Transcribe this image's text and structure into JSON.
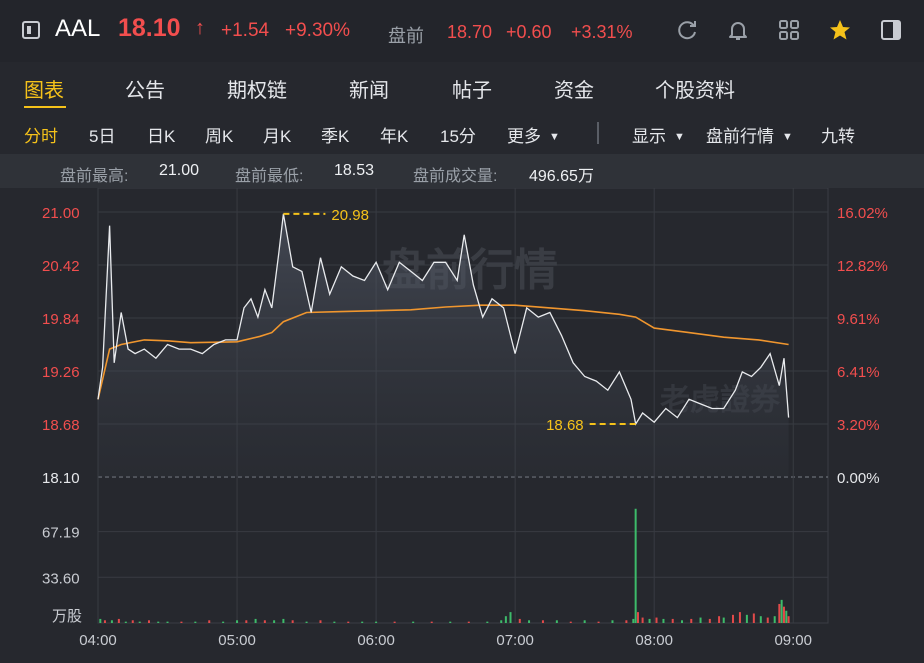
{
  "header": {
    "ticker": "AAL",
    "price": "18.10",
    "change": "+1.54",
    "change_pct": "+9.30%",
    "premarket_label": "盘前",
    "premarket_price": "18.70",
    "premarket_change": "+0.60",
    "premarket_change_pct": "+3.31%",
    "up_color": "#f24e4e",
    "icons": [
      "refresh-icon",
      "bell-icon",
      "grid-icon",
      "star-icon",
      "panel-icon"
    ]
  },
  "tabs": [
    {
      "label": "图表",
      "active": true
    },
    {
      "label": "公告"
    },
    {
      "label": "期权链"
    },
    {
      "label": "新闻"
    },
    {
      "label": "帖子"
    },
    {
      "label": "资金"
    },
    {
      "label": "个股资料"
    }
  ],
  "subtabs": {
    "periods": [
      "分时",
      "5日",
      "日K",
      "周K",
      "月K",
      "季K",
      "年K",
      "15分"
    ],
    "more": "更多",
    "display": "显示",
    "session": "盘前行情",
    "nine": "九转",
    "accent": "#f5c21a"
  },
  "stats": {
    "high_label": "盘前最高:",
    "high": "21.00",
    "low_label": "盘前最低:",
    "low": "18.53",
    "volume_label": "盘前成交量:",
    "volume": "496.65万"
  },
  "chart_data": {
    "type": "line",
    "watermark": "盘前行情",
    "brand_watermark": "老虎證券",
    "x_ticks": [
      "04:00",
      "05:00",
      "06:00",
      "07:00",
      "08:00",
      "09:00"
    ],
    "y_ticks": [
      "21.00",
      "20.42",
      "19.84",
      "19.26",
      "18.68",
      "18.10"
    ],
    "pct_ticks": [
      "16.02%",
      "12.82%",
      "9.61%",
      "6.41%",
      "3.20%",
      "0.00%"
    ],
    "ylim": [
      18.1,
      21.0
    ],
    "prev_close": 18.1,
    "high_marker": {
      "label": "20.98",
      "time": "05:20",
      "value": 20.98
    },
    "low_marker": {
      "label": "18.68",
      "time": "07:52",
      "value": 18.68
    },
    "price": {
      "time": [
        "04:00",
        "04:02",
        "04:05",
        "04:07",
        "04:10",
        "04:13",
        "04:16",
        "04:20",
        "04:25",
        "04:30",
        "04:35",
        "04:40",
        "04:45",
        "04:50",
        "04:55",
        "05:00",
        "05:03",
        "05:06",
        "05:09",
        "05:12",
        "05:15",
        "05:18",
        "05:20",
        "05:24",
        "05:28",
        "05:32",
        "05:36",
        "05:40",
        "05:45",
        "05:50",
        "05:55",
        "06:00",
        "06:05",
        "06:10",
        "06:15",
        "06:20",
        "06:25",
        "06:30",
        "06:35",
        "06:38",
        "06:42",
        "06:46",
        "06:50",
        "06:55",
        "07:00",
        "07:05",
        "07:10",
        "07:15",
        "07:20",
        "07:25",
        "07:30",
        "07:35",
        "07:40",
        "07:45",
        "07:50",
        "07:52",
        "07:55",
        "08:00",
        "08:05",
        "08:10",
        "08:15",
        "08:20",
        "08:25",
        "08:30",
        "08:35",
        "08:38",
        "08:42",
        "08:46",
        "08:50",
        "08:54",
        "08:56",
        "08:58"
      ],
      "values": [
        18.95,
        19.3,
        20.85,
        19.35,
        19.9,
        19.5,
        19.45,
        19.5,
        19.4,
        19.55,
        19.5,
        19.5,
        19.45,
        19.55,
        19.6,
        19.6,
        19.95,
        20.05,
        19.85,
        20.15,
        19.95,
        20.55,
        20.98,
        20.4,
        20.35,
        19.9,
        20.5,
        20.1,
        20.4,
        20.3,
        20.25,
        20.45,
        20.15,
        20.45,
        20.35,
        20.25,
        20.45,
        20.45,
        20.25,
        20.75,
        20.2,
        19.85,
        20.05,
        19.95,
        19.45,
        19.95,
        19.85,
        19.9,
        19.65,
        19.35,
        19.2,
        19.15,
        19.05,
        19.25,
        18.95,
        18.68,
        18.8,
        18.7,
        18.85,
        18.75,
        18.95,
        18.9,
        18.85,
        18.85,
        19.05,
        19.25,
        19.2,
        19.3,
        19.45,
        19.1,
        19.4,
        18.75
      ],
      "color": "#e9ebee"
    },
    "avg": {
      "time": [
        "04:00",
        "04:05",
        "04:10",
        "04:20",
        "04:30",
        "04:40",
        "05:00",
        "05:10",
        "05:15",
        "05:20",
        "05:30",
        "05:45",
        "06:00",
        "06:15",
        "06:30",
        "06:45",
        "07:00",
        "07:15",
        "07:30",
        "07:45",
        "07:52",
        "08:00",
        "08:15",
        "08:30",
        "08:45",
        "08:58"
      ],
      "values": [
        18.95,
        19.5,
        19.55,
        19.6,
        19.59,
        19.57,
        19.58,
        19.64,
        19.68,
        19.8,
        19.9,
        19.91,
        19.92,
        19.93,
        19.96,
        19.98,
        19.98,
        19.95,
        19.92,
        19.88,
        19.85,
        19.73,
        19.68,
        19.63,
        19.6,
        19.55
      ],
      "color": "#f0962e"
    },
    "volume": {
      "y_ticks": [
        "67.19",
        "33.60"
      ],
      "unit": "万股",
      "ylim": [
        0,
        100
      ],
      "up_color": "#3dbb6a",
      "down_color": "#e24a4a",
      "bars": [
        {
          "t": "04:01",
          "v": 3,
          "up": true
        },
        {
          "t": "04:03",
          "v": 2,
          "up": false
        },
        {
          "t": "04:06",
          "v": 2,
          "up": true
        },
        {
          "t": "04:09",
          "v": 3,
          "up": false
        },
        {
          "t": "04:12",
          "v": 1,
          "up": true
        },
        {
          "t": "04:15",
          "v": 2,
          "up": false
        },
        {
          "t": "04:18",
          "v": 1,
          "up": true
        },
        {
          "t": "04:22",
          "v": 2,
          "up": false
        },
        {
          "t": "04:26",
          "v": 1,
          "up": true
        },
        {
          "t": "04:30",
          "v": 1,
          "up": true
        },
        {
          "t": "04:36",
          "v": 1,
          "up": false
        },
        {
          "t": "04:42",
          "v": 1,
          "up": true
        },
        {
          "t": "04:48",
          "v": 2,
          "up": false
        },
        {
          "t": "04:54",
          "v": 1,
          "up": true
        },
        {
          "t": "05:00",
          "v": 2,
          "up": true
        },
        {
          "t": "05:04",
          "v": 2,
          "up": false
        },
        {
          "t": "05:08",
          "v": 3,
          "up": true
        },
        {
          "t": "05:12",
          "v": 2,
          "up": false
        },
        {
          "t": "05:16",
          "v": 2,
          "up": true
        },
        {
          "t": "05:20",
          "v": 3,
          "up": true
        },
        {
          "t": "05:24",
          "v": 2,
          "up": false
        },
        {
          "t": "05:30",
          "v": 1,
          "up": true
        },
        {
          "t": "05:36",
          "v": 2,
          "up": false
        },
        {
          "t": "05:42",
          "v": 1,
          "up": true
        },
        {
          "t": "05:48",
          "v": 1,
          "up": false
        },
        {
          "t": "05:54",
          "v": 1,
          "up": true
        },
        {
          "t": "06:00",
          "v": 1,
          "up": true
        },
        {
          "t": "06:08",
          "v": 1,
          "up": false
        },
        {
          "t": "06:16",
          "v": 1,
          "up": true
        },
        {
          "t": "06:24",
          "v": 1,
          "up": false
        },
        {
          "t": "06:32",
          "v": 1,
          "up": true
        },
        {
          "t": "06:40",
          "v": 1,
          "up": false
        },
        {
          "t": "06:48",
          "v": 1,
          "up": true
        },
        {
          "t": "06:54",
          "v": 2,
          "up": true
        },
        {
          "t": "06:56",
          "v": 5,
          "up": true
        },
        {
          "t": "06:58",
          "v": 8,
          "up": true
        },
        {
          "t": "07:02",
          "v": 3,
          "up": false
        },
        {
          "t": "07:06",
          "v": 2,
          "up": true
        },
        {
          "t": "07:12",
          "v": 2,
          "up": false
        },
        {
          "t": "07:18",
          "v": 2,
          "up": true
        },
        {
          "t": "07:24",
          "v": 1,
          "up": false
        },
        {
          "t": "07:30",
          "v": 2,
          "up": true
        },
        {
          "t": "07:36",
          "v": 1,
          "up": false
        },
        {
          "t": "07:42",
          "v": 2,
          "up": true
        },
        {
          "t": "07:48",
          "v": 2,
          "up": false
        },
        {
          "t": "07:51",
          "v": 3,
          "up": true
        },
        {
          "t": "07:52",
          "v": 84,
          "up": true
        },
        {
          "t": "07:53",
          "v": 8,
          "up": false
        },
        {
          "t": "07:55",
          "v": 4,
          "up": false
        },
        {
          "t": "07:58",
          "v": 3,
          "up": true
        },
        {
          "t": "08:01",
          "v": 4,
          "up": false
        },
        {
          "t": "08:04",
          "v": 3,
          "up": true
        },
        {
          "t": "08:08",
          "v": 3,
          "up": false
        },
        {
          "t": "08:12",
          "v": 2,
          "up": true
        },
        {
          "t": "08:16",
          "v": 3,
          "up": false
        },
        {
          "t": "08:20",
          "v": 4,
          "up": true
        },
        {
          "t": "08:24",
          "v": 3,
          "up": false
        },
        {
          "t": "08:28",
          "v": 5,
          "up": false
        },
        {
          "t": "08:30",
          "v": 4,
          "up": true
        },
        {
          "t": "08:34",
          "v": 6,
          "up": false
        },
        {
          "t": "08:37",
          "v": 8,
          "up": false
        },
        {
          "t": "08:40",
          "v": 6,
          "up": true
        },
        {
          "t": "08:43",
          "v": 7,
          "up": false
        },
        {
          "t": "08:46",
          "v": 5,
          "up": true
        },
        {
          "t": "08:49",
          "v": 4,
          "up": false
        },
        {
          "t": "08:52",
          "v": 5,
          "up": true
        },
        {
          "t": "08:54",
          "v": 14,
          "up": false
        },
        {
          "t": "08:55",
          "v": 17,
          "up": true
        },
        {
          "t": "08:56",
          "v": 12,
          "up": false
        },
        {
          "t": "08:57",
          "v": 9,
          "up": true
        },
        {
          "t": "08:58",
          "v": 5,
          "up": false
        }
      ]
    }
  }
}
